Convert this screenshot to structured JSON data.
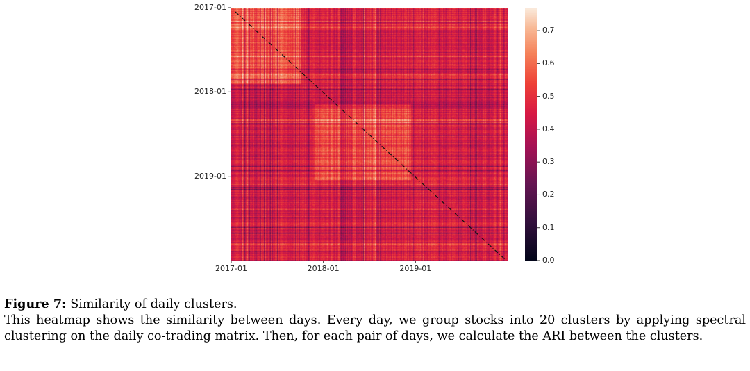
{
  "chart_data": {
    "type": "heatmap",
    "title": "",
    "x_tick_labels": [
      "2017-01",
      "2018-01",
      "2019-01"
    ],
    "y_tick_labels": [
      "2017-01",
      "2018-01",
      "2019-01"
    ],
    "x_range_days": [
      0,
      1095
    ],
    "x_tick_days": [
      0,
      365,
      730
    ],
    "y_tick_days": [
      0,
      365,
      730
    ],
    "colorbar": {
      "min": 0.0,
      "max": 0.77,
      "ticks": [
        0.0,
        0.1,
        0.2,
        0.3,
        0.4,
        0.5,
        0.6,
        0.7
      ],
      "tick_labels": [
        "0.0",
        "0.1",
        "0.2",
        "0.3",
        "0.4",
        "0.5",
        "0.6",
        "0.7"
      ],
      "colormap": "rocket"
    },
    "typical_value": 0.45,
    "diagonal": "dashed black line (self-similarity)"
  },
  "caption": {
    "label": "Figure 7:",
    "title": "Similarity of daily clusters.",
    "body": "This heatmap shows the similarity between days. Every day, we group stocks into 20 clusters by applying spectral clustering on the daily co-trading matrix. Then, for each pair of days, we calculate the ARI between the clusters."
  }
}
